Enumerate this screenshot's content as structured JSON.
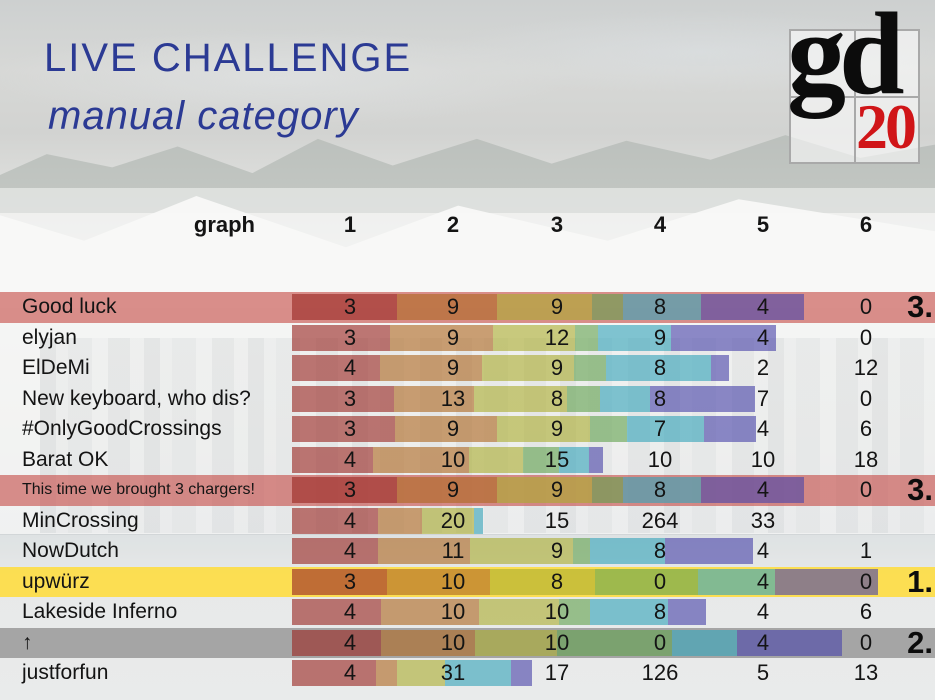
{
  "slide": {
    "title": "LIVE CHALLENGE",
    "subtitle": "manual category",
    "title_color": "#2b3a94",
    "logo": {
      "letters": "gd",
      "year": "20",
      "year_color": "#d01518"
    }
  },
  "table": {
    "header": {
      "label": "graph",
      "columns": [
        "1",
        "2",
        "3",
        "4",
        "5",
        "6"
      ]
    },
    "highlight_colors": {
      "red": "rgba(200,85,80,0.65)",
      "yellow": "rgba(255,220,55,0.85)",
      "gray": "rgba(148,148,148,0.8)"
    },
    "bar_palette": [
      "rgba(153,40,35,0.62)",
      "rgba(175,105,35,0.62)",
      "rgba(170,172,45,0.6)",
      "rgba(95,160,75,0.6)",
      "rgba(55,165,185,0.62)",
      "rgba(75,70,170,0.62)"
    ],
    "rows": [
      {
        "name": "Good luck",
        "scores": [
          "3",
          "9",
          "9",
          "8",
          "4",
          "0"
        ],
        "bar": [
          105,
          100,
          95,
          31,
          78,
          103
        ],
        "highlight": "red",
        "rank": "3."
      },
      {
        "name": "elyjan",
        "scores": [
          "3",
          "9",
          "12",
          "9",
          "4",
          "0"
        ],
        "bar": [
          98,
          103,
          82,
          23,
          73,
          105
        ],
        "highlight": "",
        "rank": ""
      },
      {
        "name": "ElDeMi",
        "scores": [
          "4",
          "9",
          "9",
          "8",
          "2",
          "12"
        ],
        "bar": [
          88,
          102,
          92,
          32,
          105,
          18
        ],
        "highlight": "",
        "rank": ""
      },
      {
        "name": "New keyboard, who dis?",
        "scores": [
          "3",
          "13",
          "8",
          "8",
          "7",
          "0"
        ],
        "bar": [
          102,
          80,
          93,
          33,
          50,
          105
        ],
        "highlight": "",
        "rank": ""
      },
      {
        "name": "#OnlyGoodCrossings",
        "scores": [
          "3",
          "9",
          "9",
          "7",
          "4",
          "6"
        ],
        "bar": [
          103,
          102,
          93,
          37,
          77,
          52
        ],
        "highlight": "",
        "rank": ""
      },
      {
        "name": "Barat OK",
        "scores": [
          "4",
          "10",
          "15",
          "10",
          "10",
          "18"
        ],
        "bar": [
          81,
          96,
          54,
          36,
          30,
          14
        ],
        "highlight": "",
        "rank": ""
      },
      {
        "name": "This time we brought 3 chargers!",
        "scores": [
          "3",
          "9",
          "9",
          "8",
          "4",
          "0"
        ],
        "bar": [
          105,
          100,
          95,
          31,
          78,
          103
        ],
        "highlight": "red",
        "rank": "3.",
        "small_name": true
      },
      {
        "name": "MinCrossing",
        "scores": [
          "4",
          "20",
          "15",
          "264",
          "33",
          ""
        ],
        "bar": [
          86,
          44,
          52,
          0,
          9,
          0
        ],
        "highlight": "",
        "rank": ""
      },
      {
        "name": "NowDutch",
        "scores": [
          "4",
          "11",
          "9",
          "8",
          "4",
          "1"
        ],
        "bar": [
          86,
          92,
          103,
          17,
          75,
          88
        ],
        "highlight": "",
        "rank": ""
      },
      {
        "name": "upwürz",
        "scores": [
          "3",
          "10",
          "8",
          "0",
          "4",
          "0"
        ],
        "bar": [
          95,
          103,
          105,
          103,
          77,
          103
        ],
        "highlight": "yellow",
        "rank": "1."
      },
      {
        "name": "Lakeside Inferno",
        "scores": [
          "4",
          "10",
          "10",
          "8",
          "4",
          "6"
        ],
        "bar": [
          89,
          98,
          80,
          31,
          78,
          38
        ],
        "highlight": "",
        "rank": ""
      },
      {
        "name": "↑",
        "scores": [
          "4",
          "10",
          "10",
          "0",
          "4",
          "0"
        ],
        "bar": [
          89,
          94,
          82,
          115,
          65,
          105
        ],
        "highlight": "gray",
        "rank": "2."
      },
      {
        "name": "justforfun",
        "scores": [
          "4",
          "31",
          "17",
          "126",
          "5",
          "13"
        ],
        "bar": [
          84,
          21,
          48,
          0,
          66,
          21
        ],
        "highlight": "",
        "rank": ""
      }
    ]
  }
}
